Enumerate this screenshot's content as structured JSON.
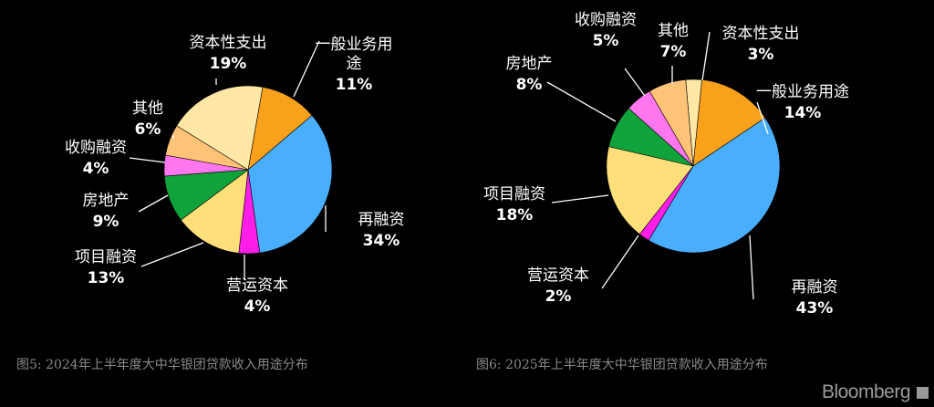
{
  "captions": {
    "left": "图5: 2024年上半年度大中华银团贷款收入用途分布",
    "right": "图6: 2025年上半年度大中华银团贷款收入用途分布"
  },
  "brand": "Bloomberg",
  "colors": {
    "general": "#f9a11b",
    "refinancing": "#4aaeff",
    "working_capital": "#ff1de8",
    "project": "#ffdf7a",
    "real_estate": "#10a33b",
    "acquisition": "#ff77ee",
    "other": "#ffc378",
    "capex": "#ffe7a6",
    "leader": "#ffffff",
    "text": "#ffffff"
  },
  "chart_data": [
    {
      "type": "pie",
      "slices": [
        {
          "key": "general",
          "label": "一般业务用途",
          "value": 11,
          "pct": "11%"
        },
        {
          "key": "refinancing",
          "label": "再融资",
          "value": 34,
          "pct": "34%"
        },
        {
          "key": "working_capital",
          "label": "营运资本",
          "value": 4,
          "pct": "4%"
        },
        {
          "key": "project",
          "label": "项目融资",
          "value": 13,
          "pct": "13%"
        },
        {
          "key": "real_estate",
          "label": "房地产",
          "value": 9,
          "pct": "9%"
        },
        {
          "key": "acquisition",
          "label": "收购融资",
          "value": 4,
          "pct": "4%"
        },
        {
          "key": "other",
          "label": "其他",
          "value": 6,
          "pct": "6%"
        },
        {
          "key": "capex",
          "label": "资本性支出",
          "value": 19,
          "pct": "19%"
        }
      ]
    },
    {
      "type": "pie",
      "slices": [
        {
          "key": "capex",
          "label": "资本性支出",
          "value": 3,
          "pct": "3%"
        },
        {
          "key": "general",
          "label": "一般业务用途",
          "value": 14,
          "pct": "14%"
        },
        {
          "key": "refinancing",
          "label": "再融资",
          "value": 43,
          "pct": "43%"
        },
        {
          "key": "working_capital",
          "label": "营运资本",
          "value": 2,
          "pct": "2%"
        },
        {
          "key": "project",
          "label": "项目融资",
          "value": 18,
          "pct": "18%"
        },
        {
          "key": "real_estate",
          "label": "房地产",
          "value": 8,
          "pct": "8%"
        },
        {
          "key": "acquisition",
          "label": "收购融资",
          "value": 5,
          "pct": "5%"
        },
        {
          "key": "other",
          "label": "其他",
          "value": 7,
          "pct": "7%"
        }
      ]
    }
  ]
}
